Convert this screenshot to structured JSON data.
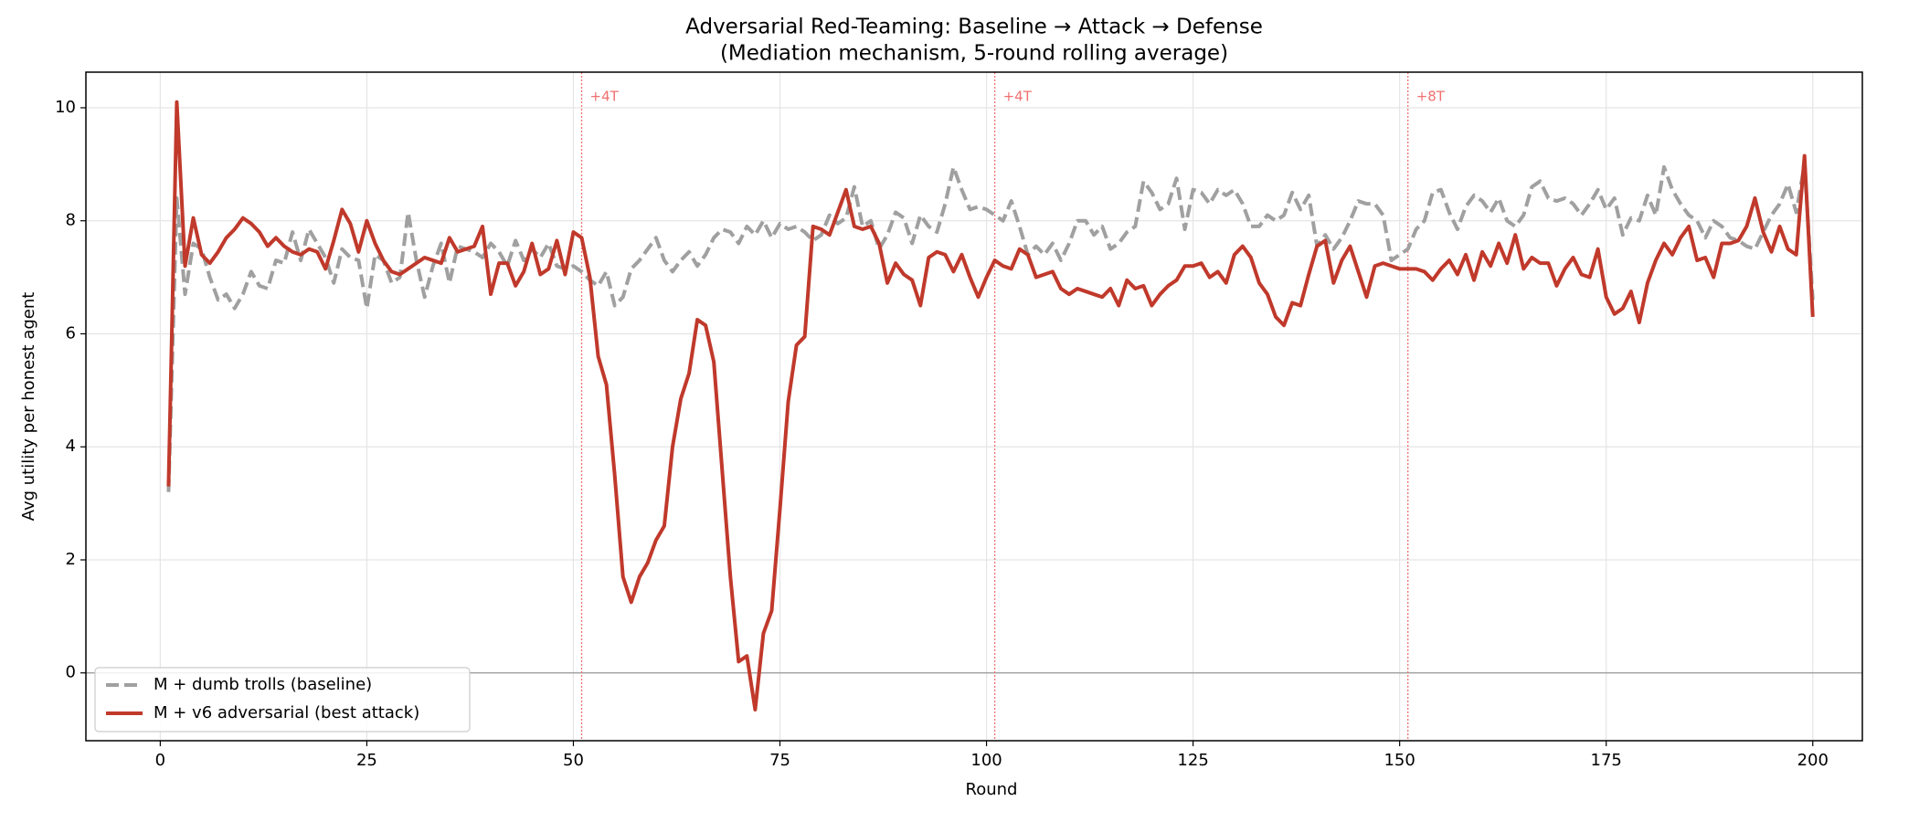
{
  "chart_data": {
    "type": "line",
    "title": "Adversarial Red-Teaming: Baseline → Attack → Defense",
    "subtitle": "(Mediation mechanism, 5-round rolling average)",
    "xlabel": "Round",
    "ylabel": "Avg utility per honest agent",
    "xlim": [
      -9,
      206
    ],
    "ylim": [
      -1.2,
      10.63
    ],
    "xticks": [
      0,
      25,
      50,
      75,
      100,
      125,
      150,
      175,
      200
    ],
    "yticks": [
      0,
      2,
      4,
      6,
      8,
      10
    ],
    "grid": true,
    "legend": "lower left",
    "hline": 0,
    "annotations": [
      {
        "x": 51,
        "label": "+4T"
      },
      {
        "x": 101,
        "label": "+4T"
      },
      {
        "x": 151,
        "label": "+8T"
      }
    ],
    "annotation_color": "#f07070",
    "x": [
      1,
      2,
      3,
      4,
      5,
      6,
      7,
      8,
      9,
      10,
      11,
      12,
      13,
      14,
      15,
      16,
      17,
      18,
      19,
      20,
      21,
      22,
      23,
      24,
      25,
      26,
      27,
      28,
      29,
      30,
      31,
      32,
      33,
      34,
      35,
      36,
      37,
      38,
      39,
      40,
      41,
      42,
      43,
      44,
      45,
      46,
      47,
      48,
      49,
      50,
      51,
      52,
      53,
      54,
      55,
      56,
      57,
      58,
      59,
      60,
      61,
      62,
      63,
      64,
      65,
      66,
      67,
      68,
      69,
      70,
      71,
      72,
      73,
      74,
      75,
      76,
      77,
      78,
      79,
      80,
      81,
      82,
      83,
      84,
      85,
      86,
      87,
      88,
      89,
      90,
      91,
      92,
      93,
      94,
      95,
      96,
      97,
      98,
      99,
      100,
      101,
      102,
      103,
      104,
      105,
      106,
      107,
      108,
      109,
      110,
      111,
      112,
      113,
      114,
      115,
      116,
      117,
      118,
      119,
      120,
      121,
      122,
      123,
      124,
      125,
      126,
      127,
      128,
      129,
      130,
      131,
      132,
      133,
      134,
      135,
      136,
      137,
      138,
      139,
      140,
      141,
      142,
      143,
      144,
      145,
      146,
      147,
      148,
      149,
      150,
      151,
      152,
      153,
      154,
      155,
      156,
      157,
      158,
      159,
      160,
      161,
      162,
      163,
      164,
      165,
      166,
      167,
      168,
      169,
      170,
      171,
      172,
      173,
      174,
      175,
      176,
      177,
      178,
      179,
      180,
      181,
      182,
      183,
      184,
      185,
      186,
      187,
      188,
      189,
      190,
      191,
      192,
      193,
      194,
      195,
      196,
      197,
      198,
      199,
      200
    ],
    "series": [
      {
        "name": "M + dumb trolls (baseline)",
        "color": "#a0a0a0",
        "dash": true,
        "values": [
          3.2,
          8.4,
          6.7,
          7.6,
          7.5,
          7.0,
          6.6,
          6.7,
          6.45,
          6.7,
          7.1,
          6.85,
          6.8,
          7.3,
          7.25,
          7.8,
          7.3,
          7.85,
          7.6,
          7.35,
          6.9,
          7.5,
          7.35,
          7.3,
          6.45,
          7.4,
          7.3,
          6.9,
          7.0,
          8.15,
          7.3,
          6.65,
          7.2,
          7.6,
          6.9,
          7.55,
          7.5,
          7.45,
          7.35,
          7.6,
          7.45,
          7.2,
          7.65,
          7.3,
          7.5,
          7.35,
          7.6,
          7.2,
          7.15,
          7.2,
          7.1,
          6.95,
          6.85,
          7.1,
          6.5,
          6.65,
          7.15,
          7.3,
          7.5,
          7.7,
          7.3,
          7.1,
          7.3,
          7.45,
          7.2,
          7.4,
          7.7,
          7.85,
          7.8,
          7.6,
          7.9,
          7.75,
          8.0,
          7.7,
          7.95,
          7.85,
          7.9,
          7.8,
          7.65,
          7.75,
          8.1,
          7.95,
          8.05,
          8.6,
          7.9,
          8.0,
          7.5,
          7.75,
          8.15,
          8.05,
          7.6,
          8.1,
          7.9,
          7.8,
          8.3,
          8.95,
          8.55,
          8.2,
          8.25,
          8.2,
          8.1,
          8.0,
          8.35,
          7.9,
          7.4,
          7.55,
          7.4,
          7.6,
          7.3,
          7.6,
          8.0,
          8.0,
          7.75,
          7.9,
          7.5,
          7.6,
          7.8,
          7.9,
          8.7,
          8.5,
          8.2,
          8.3,
          8.75,
          7.85,
          8.55,
          8.5,
          8.3,
          8.55,
          8.45,
          8.55,
          8.3,
          7.9,
          7.9,
          8.1,
          8.0,
          8.1,
          8.5,
          8.2,
          8.45,
          7.55,
          7.75,
          7.5,
          7.7,
          8.0,
          8.35,
          8.3,
          8.3,
          8.1,
          7.3,
          7.4,
          7.5,
          7.85,
          8.0,
          8.5,
          8.55,
          8.15,
          7.85,
          8.25,
          8.45,
          8.35,
          8.15,
          8.4,
          8.0,
          7.9,
          8.1,
          8.6,
          8.7,
          8.4,
          8.35,
          8.4,
          8.3,
          8.1,
          8.3,
          8.55,
          8.2,
          8.4,
          7.75,
          8.05,
          8.0,
          8.45,
          8.1,
          8.95,
          8.55,
          8.3,
          8.1,
          8.0,
          7.7,
          8.0,
          7.9,
          7.7,
          7.65,
          7.55,
          7.5,
          7.8,
          8.1,
          8.3,
          8.65,
          8.15,
          9.0,
          6.6
        ]
      },
      {
        "name": "M + v6 adversarial (best attack)",
        "color": "#c0392b",
        "dash": false,
        "values": [
          3.3,
          10.1,
          7.2,
          8.05,
          7.4,
          7.25,
          7.45,
          7.7,
          7.85,
          8.05,
          7.95,
          7.8,
          7.55,
          7.7,
          7.55,
          7.45,
          7.4,
          7.5,
          7.45,
          7.15,
          7.65,
          8.2,
          7.95,
          7.45,
          8.0,
          7.6,
          7.3,
          7.1,
          7.05,
          7.15,
          7.25,
          7.35,
          7.3,
          7.25,
          7.7,
          7.45,
          7.5,
          7.55,
          7.9,
          6.7,
          7.25,
          7.25,
          6.85,
          7.1,
          7.6,
          7.05,
          7.15,
          7.65,
          7.05,
          7.8,
          7.7,
          7.0,
          5.6,
          5.1,
          3.5,
          1.7,
          1.25,
          1.7,
          1.95,
          2.35,
          2.6,
          4.0,
          4.85,
          5.3,
          6.25,
          6.15,
          5.5,
          3.6,
          1.7,
          0.2,
          0.3,
          -0.65,
          0.7,
          1.1,
          2.9,
          4.8,
          5.8,
          5.95,
          7.9,
          7.85,
          7.75,
          8.15,
          8.55,
          7.9,
          7.85,
          7.9,
          7.6,
          6.9,
          7.25,
          7.05,
          6.95,
          6.5,
          7.35,
          7.45,
          7.4,
          7.1,
          7.4,
          7.0,
          6.65,
          7.0,
          7.3,
          7.2,
          7.15,
          7.5,
          7.4,
          7.0,
          7.05,
          7.1,
          6.8,
          6.7,
          6.8,
          6.75,
          6.7,
          6.65,
          6.8,
          6.5,
          6.95,
          6.8,
          6.85,
          6.5,
          6.7,
          6.85,
          6.95,
          7.2,
          7.2,
          7.25,
          7.0,
          7.1,
          6.9,
          7.4,
          7.55,
          7.35,
          6.9,
          6.7,
          6.3,
          6.15,
          6.55,
          6.5,
          7.05,
          7.55,
          7.65,
          6.9,
          7.3,
          7.55,
          7.1,
          6.65,
          7.2,
          7.25,
          7.2,
          7.15,
          7.15,
          7.15,
          7.1,
          6.95,
          7.15,
          7.3,
          7.05,
          7.4,
          6.95,
          7.45,
          7.2,
          7.6,
          7.25,
          7.75,
          7.15,
          7.35,
          7.25,
          7.25,
          6.85,
          7.15,
          7.35,
          7.05,
          7.0,
          7.5,
          6.65,
          6.35,
          6.45,
          6.75,
          6.2,
          6.9,
          7.3,
          7.6,
          7.4,
          7.7,
          7.9,
          7.3,
          7.35,
          7.0,
          7.6,
          7.6,
          7.65,
          7.9,
          8.4,
          7.8,
          7.45,
          7.9,
          7.5,
          7.4,
          9.15,
          6.3
        ]
      }
    ]
  }
}
